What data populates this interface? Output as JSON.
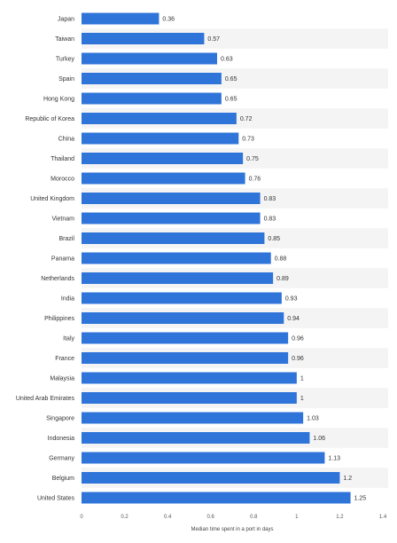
{
  "chart_data": {
    "type": "bar",
    "orientation": "horizontal",
    "categories": [
      "Japan",
      "Taiwan",
      "Turkey",
      "Spain",
      "Hong Kong",
      "Republic of Korea",
      "China",
      "Thailand",
      "Morocco",
      "United Kingdom",
      "Vietnam",
      "Brazil",
      "Panama",
      "Netherlands",
      "India",
      "Philippines",
      "Italy",
      "France",
      "Malaysia",
      "United Arab Emirates",
      "Singapore",
      "Indonesia",
      "Germany",
      "Belgium",
      "United States"
    ],
    "values": [
      0.36,
      0.57,
      0.63,
      0.65,
      0.65,
      0.72,
      0.73,
      0.75,
      0.76,
      0.83,
      0.83,
      0.85,
      0.88,
      0.89,
      0.93,
      0.94,
      0.96,
      0.96,
      1,
      1,
      1.03,
      1.06,
      1.13,
      1.2,
      1.25
    ],
    "value_labels": [
      "0.36",
      "0.57",
      "0.63",
      "0.65",
      "0.65",
      "0.72",
      "0.73",
      "0.75",
      "0.76",
      "0.83",
      "0.83",
      "0.85",
      "0.88",
      "0.89",
      "0.93",
      "0.94",
      "0.96",
      "0.96",
      "1",
      "1",
      "1.03",
      "1.06",
      "1.13",
      "1.2",
      "1.25"
    ],
    "xlim": [
      0,
      1.4
    ],
    "xticks": [
      0,
      0.2,
      0.4,
      0.6,
      0.8,
      1,
      1.2,
      1.4
    ],
    "xtick_labels": [
      "0",
      "0.2",
      "0.4",
      "0.6",
      "0.8",
      "1",
      "1.2",
      "1.4"
    ],
    "xlabel": "Median time spent in a port in days",
    "title": "",
    "ylabel": "",
    "grid": false,
    "colors": {
      "bar": "#2f74d8",
      "stripe": "#f4f4f4"
    }
  }
}
